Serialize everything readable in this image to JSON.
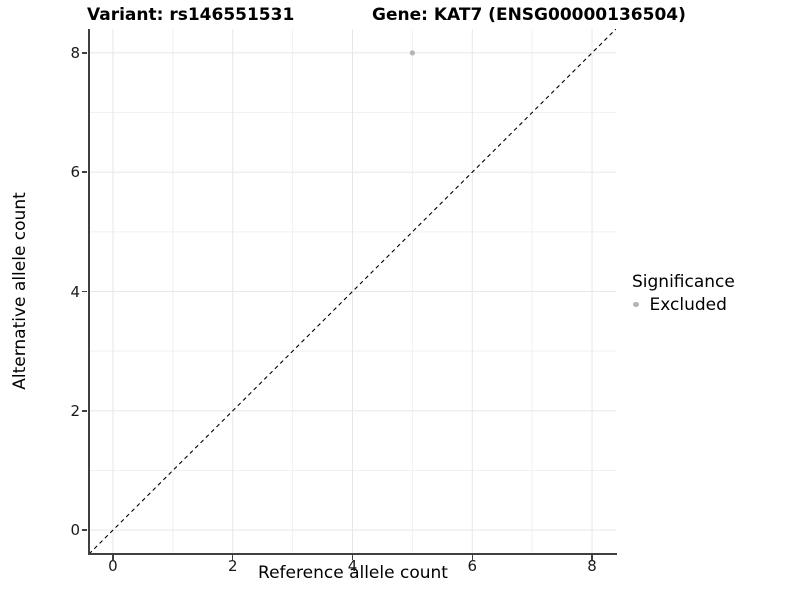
{
  "chart_data": {
    "type": "scatter",
    "titles": {
      "left": "Variant: rs146551531",
      "right": "Gene: KAT7 (ENSG00000136504)"
    },
    "xlabel": "Reference allele count",
    "ylabel": "Alternative allele count",
    "xlim": [
      -0.4,
      8.4
    ],
    "ylim": [
      -0.4,
      8.4
    ],
    "xticks": [
      0,
      2,
      4,
      6,
      8
    ],
    "yticks": [
      0,
      2,
      4,
      6,
      8
    ],
    "minor_xticks": [
      1,
      3,
      5,
      7
    ],
    "minor_yticks": [
      1,
      3,
      5,
      7
    ],
    "grid": "major+minor",
    "points": [
      {
        "x": 5,
        "y": 8,
        "series": "Excluded"
      }
    ],
    "reference_line": {
      "slope": 1,
      "intercept": 0,
      "style": "dashed"
    },
    "legend": {
      "title": "Significance",
      "position": "right",
      "items": [
        {
          "label": "Excluded",
          "color": "#b5b5b5"
        }
      ]
    },
    "colors": {
      "point": "#b5b5b5",
      "grid_major": "#e7e7e7",
      "grid_minor": "#f1f1f1",
      "axis_line": "#404040",
      "reference_line": "#000000",
      "background": "#ffffff"
    }
  }
}
